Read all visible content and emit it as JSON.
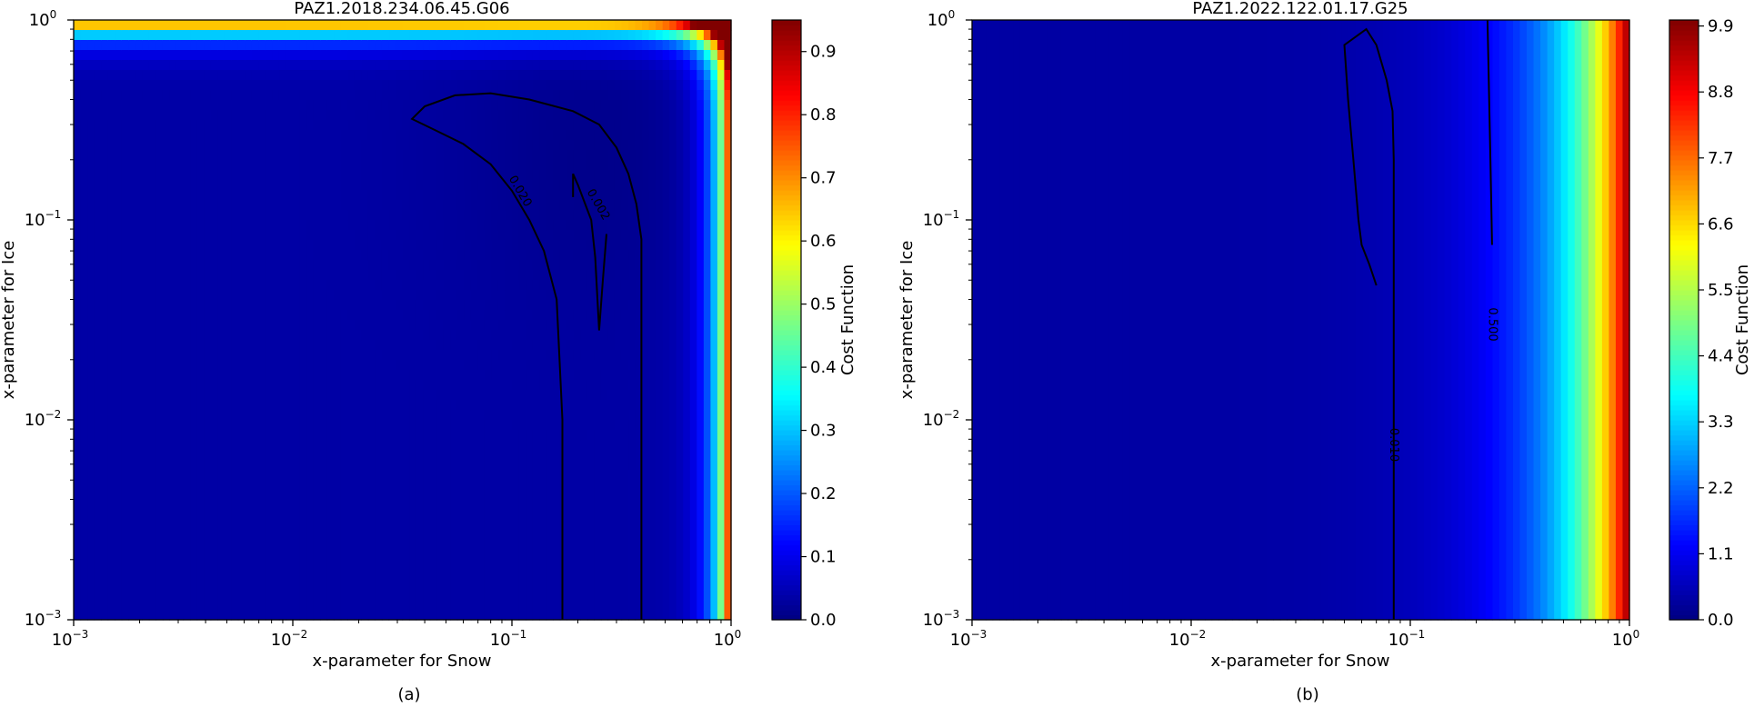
{
  "chart_data": [
    {
      "type": "heatmap",
      "title": "PAZ1.2018.234.06.45.G06",
      "xlabel": "x-parameter for Snow",
      "ylabel": "x-parameter for Ice",
      "xscale": "log",
      "yscale": "log",
      "xlim": [
        0.001,
        1
      ],
      "ylim": [
        0.001,
        1
      ],
      "x_ticks": [
        {
          "value": 0.001,
          "base": "10",
          "exp": "−3"
        },
        {
          "value": 0.01,
          "base": "10",
          "exp": "−2"
        },
        {
          "value": 0.1,
          "base": "10",
          "exp": "−1"
        },
        {
          "value": 1,
          "base": "10",
          "exp": "0"
        }
      ],
      "y_ticks": [
        {
          "value": 0.001,
          "base": "10",
          "exp": "−3"
        },
        {
          "value": 0.01,
          "base": "10",
          "exp": "−2"
        },
        {
          "value": 0.1,
          "base": "10",
          "exp": "−1"
        },
        {
          "value": 1,
          "base": "10",
          "exp": "0"
        }
      ],
      "colorbar": {
        "label": "Cost Function",
        "colormap": "jet",
        "range": [
          0,
          0.95
        ],
        "ticks": [
          "0.0",
          "0.1",
          "0.2",
          "0.3",
          "0.4",
          "0.5",
          "0.6",
          "0.7",
          "0.8",
          "0.9"
        ],
        "tick_values": [
          0,
          0.1,
          0.2,
          0.3,
          0.4,
          0.5,
          0.6,
          0.7,
          0.8,
          0.9
        ]
      },
      "surface": {
        "kind": "corner",
        "background": 0.035,
        "basin": 0.01,
        "basin_center": [
          0.25,
          0.2
        ],
        "max": 0.95
      },
      "contours": [
        {
          "label": "0.020",
          "label_at": [
            0.11,
            0.14
          ],
          "points": [
            [
              0.17,
              0.001
            ],
            [
              0.17,
              0.01
            ],
            [
              0.16,
              0.04
            ],
            [
              0.14,
              0.07
            ],
            [
              0.12,
              0.1
            ],
            [
              0.1,
              0.14
            ],
            [
              0.08,
              0.19
            ],
            [
              0.06,
              0.24
            ],
            [
              0.045,
              0.28
            ],
            [
              0.035,
              0.32
            ],
            [
              0.04,
              0.37
            ],
            [
              0.055,
              0.42
            ],
            [
              0.08,
              0.43
            ],
            [
              0.12,
              0.4
            ],
            [
              0.19,
              0.35
            ],
            [
              0.25,
              0.3
            ],
            [
              0.3,
              0.23
            ],
            [
              0.34,
              0.17
            ],
            [
              0.37,
              0.12
            ],
            [
              0.39,
              0.08
            ],
            [
              0.39,
              0.01
            ],
            [
              0.39,
              0.001
            ]
          ]
        },
        {
          "label": "0.002",
          "label_at": [
            0.25,
            0.12
          ],
          "points": [
            [
              0.19,
              0.13
            ],
            [
              0.19,
              0.17
            ],
            [
              0.2,
              0.15
            ],
            [
              0.23,
              0.1
            ],
            [
              0.24,
              0.065
            ],
            [
              0.25,
              0.028
            ],
            [
              0.26,
              0.05
            ],
            [
              0.27,
              0.085
            ]
          ]
        }
      ]
    },
    {
      "type": "heatmap",
      "title": "PAZ1.2022.122.01.17.G25",
      "xlabel": "x-parameter for Snow",
      "ylabel": "x-parameter for Ice",
      "xscale": "log",
      "yscale": "log",
      "xlim": [
        0.001,
        1
      ],
      "ylim": [
        0.001,
        1
      ],
      "x_ticks": [
        {
          "value": 0.001,
          "base": "10",
          "exp": "−3"
        },
        {
          "value": 0.01,
          "base": "10",
          "exp": "−2"
        },
        {
          "value": 0.1,
          "base": "10",
          "exp": "−1"
        },
        {
          "value": 1,
          "base": "10",
          "exp": "0"
        }
      ],
      "y_ticks": [
        {
          "value": 0.001,
          "base": "10",
          "exp": "−3"
        },
        {
          "value": 0.01,
          "base": "10",
          "exp": "−2"
        },
        {
          "value": 0.1,
          "base": "10",
          "exp": "−1"
        },
        {
          "value": 1,
          "base": "10",
          "exp": "0"
        }
      ],
      "colorbar": {
        "label": "Cost Function",
        "colormap": "jet",
        "range": [
          0,
          10
        ],
        "ticks": [
          "0.0",
          "1.1",
          "2.2",
          "3.3",
          "4.4",
          "5.5",
          "6.6",
          "7.7",
          "8.8",
          "9.9"
        ],
        "tick_values": [
          0,
          1.1,
          2.2,
          3.3,
          4.4,
          5.5,
          6.6,
          7.7,
          8.8,
          9.9
        ]
      },
      "surface": {
        "kind": "vertical",
        "background": 0.35,
        "min": 0.08,
        "max": 9.9
      },
      "contours": [
        {
          "label": "0.010",
          "label_at": [
            0.085,
            0.0075
          ],
          "points": [
            [
              0.07,
              0.047
            ],
            [
              0.065,
              0.06
            ],
            [
              0.06,
              0.075
            ],
            [
              0.058,
              0.1
            ],
            [
              0.055,
              0.2
            ],
            [
              0.052,
              0.4
            ],
            [
              0.05,
              0.75
            ],
            [
              0.063,
              0.9
            ],
            [
              0.07,
              0.75
            ],
            [
              0.078,
              0.5
            ],
            [
              0.083,
              0.35
            ],
            [
              0.084,
              0.2
            ],
            [
              0.084,
              0.1
            ],
            [
              0.084,
              0.01
            ],
            [
              0.084,
              0.001
            ]
          ]
        },
        {
          "label": "0.500",
          "label_at": [
            0.24,
            0.03
          ],
          "points": [
            [
              0.225,
              1.0
            ],
            [
              0.228,
              0.5
            ],
            [
              0.232,
              0.2
            ],
            [
              0.235,
              0.1
            ],
            [
              0.236,
              0.075
            ]
          ]
        }
      ]
    }
  ],
  "captions": [
    "(a)",
    "(b)"
  ]
}
